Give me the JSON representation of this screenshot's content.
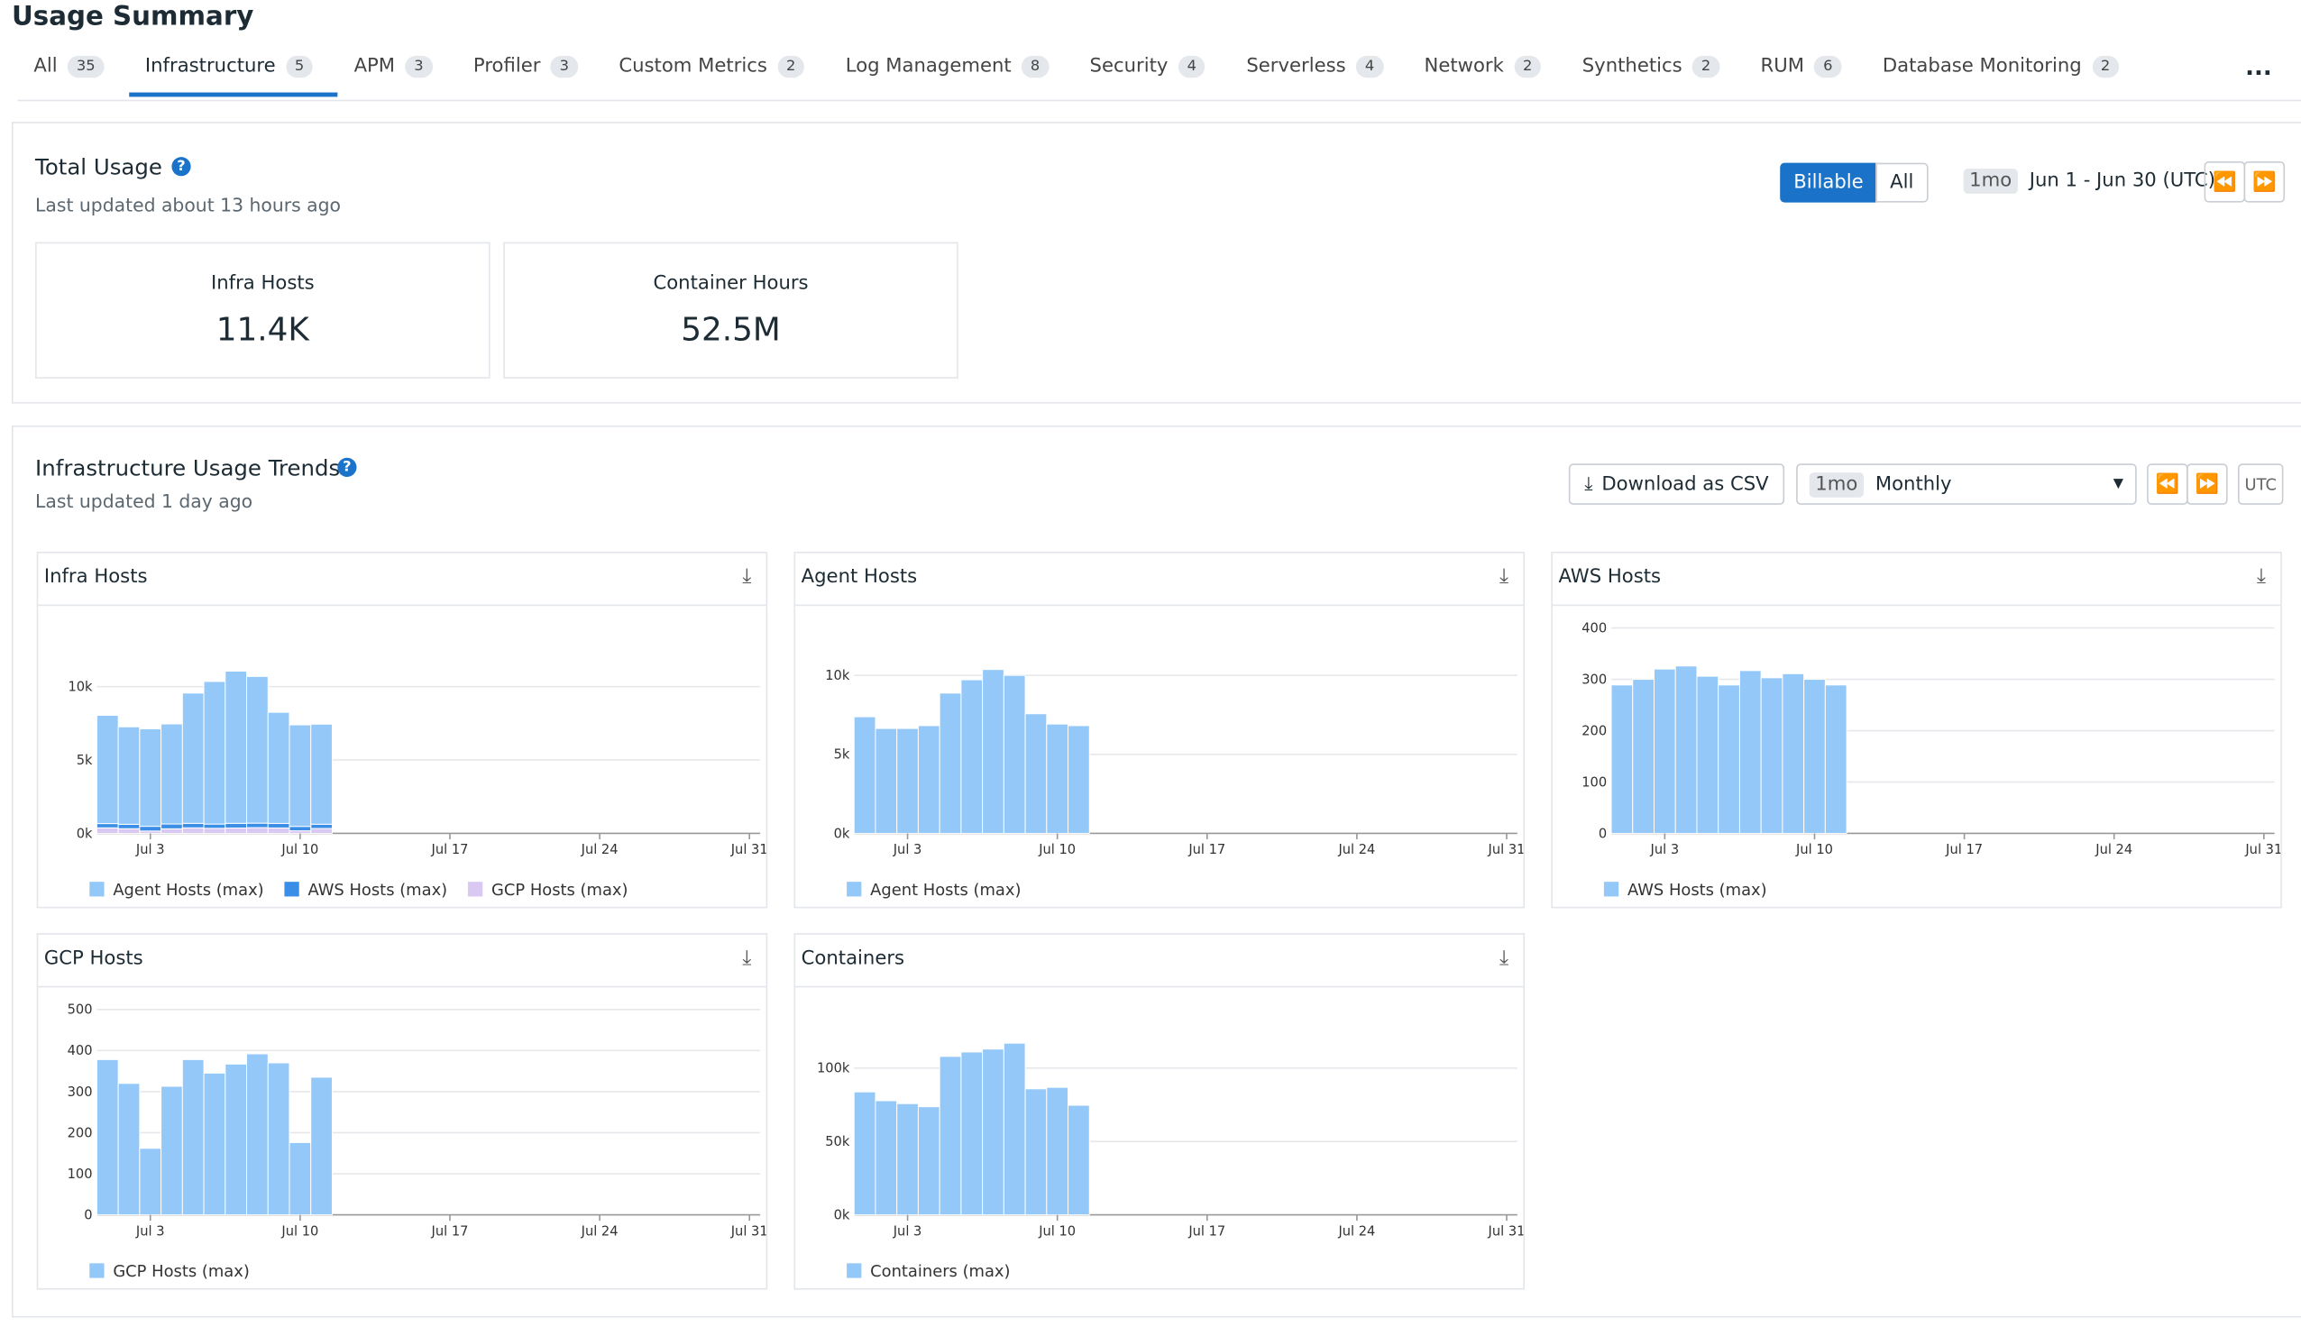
{
  "header": {
    "title": "Usage Summary"
  },
  "tabs": [
    {
      "label": "All",
      "count": 35
    },
    {
      "label": "Infrastructure",
      "count": 5,
      "active": true
    },
    {
      "label": "APM",
      "count": 3
    },
    {
      "label": "Profiler",
      "count": 3
    },
    {
      "label": "Custom Metrics",
      "count": 2
    },
    {
      "label": "Log Management",
      "count": 8
    },
    {
      "label": "Security",
      "count": 4
    },
    {
      "label": "Serverless",
      "count": 4
    },
    {
      "label": "Network",
      "count": 2
    },
    {
      "label": "Synthetics",
      "count": 2
    },
    {
      "label": "RUM",
      "count": 6
    },
    {
      "label": "Database Monitoring",
      "count": 2
    }
  ],
  "total_usage": {
    "title": "Total Usage",
    "updated": "Last updated about 13 hours ago",
    "toggle": [
      "Billable",
      "All"
    ],
    "range_badge": "1mo",
    "range": "Jun 1 - Jun 30 (UTC)",
    "cards": [
      {
        "label": "Infra Hosts",
        "value": "11.4K"
      },
      {
        "label": "Container Hours",
        "value": "52.5M"
      }
    ]
  },
  "trends": {
    "title": "Infrastructure Usage Trends",
    "updated": "Last updated 1 day ago",
    "download": "Download as CSV",
    "period_badge": "1mo",
    "period": "Monthly",
    "tz": "UTC"
  },
  "chart_data": [
    {
      "type": "bar",
      "title": "Infra Hosts",
      "stacked": true,
      "grid": true,
      "legend": "bottom-left",
      "categories": [
        null,
        null,
        "Jul 3",
        null,
        null,
        null,
        null,
        null,
        null,
        "Jul 10",
        null,
        null,
        null,
        null,
        null,
        null,
        "Jul 17",
        null,
        null,
        null,
        null,
        null,
        null,
        "Jul 24",
        null,
        null,
        null,
        null,
        null,
        null,
        "Jul 31"
      ],
      "series": [
        {
          "name": "Agent Hosts (max)",
          "color": "#94c8f8",
          "values": [
            7380,
            6640,
            6640,
            6820,
            8880,
            9720,
            10370,
            10000,
            7570,
            6920,
            6820,
            null,
            null,
            null,
            null,
            null,
            null,
            null,
            null,
            null,
            null,
            null,
            null,
            null,
            null,
            null,
            null,
            null,
            null,
            null,
            null
          ]
        },
        {
          "name": "AWS Hosts (max)",
          "color": "#3a8ee6",
          "values": [
            289,
            300,
            320,
            326,
            306,
            289,
            317,
            303,
            311,
            300,
            289,
            null,
            null,
            null,
            null,
            null,
            null,
            null,
            null,
            null,
            null,
            null,
            null,
            null,
            null,
            null,
            null,
            null,
            null,
            null,
            null
          ]
        },
        {
          "name": "GCP Hosts (max)",
          "color": "#d9c8f2",
          "values": [
            378,
            320,
            162,
            313,
            378,
            345,
            367,
            392,
            370,
            176,
            335,
            null,
            null,
            null,
            null,
            null,
            null,
            null,
            null,
            null,
            null,
            null,
            null,
            null,
            null,
            null,
            null,
            null,
            null,
            null,
            null
          ]
        }
      ],
      "ylim": [
        0,
        14000
      ],
      "yticks": [
        {
          "value": 0,
          "label": "0k"
        },
        {
          "value": 5000,
          "label": "5k"
        },
        {
          "value": 10000,
          "label": "10k"
        }
      ]
    },
    {
      "type": "bar",
      "title": "Agent Hosts",
      "grid": true,
      "legend": "bottom-left",
      "categories": [
        null,
        null,
        "Jul 3",
        null,
        null,
        null,
        null,
        null,
        null,
        "Jul 10",
        null,
        null,
        null,
        null,
        null,
        null,
        "Jul 17",
        null,
        null,
        null,
        null,
        null,
        null,
        "Jul 24",
        null,
        null,
        null,
        null,
        null,
        null,
        "Jul 31"
      ],
      "series": [
        {
          "name": "Agent Hosts (max)",
          "color": "#94c8f8",
          "values": [
            7380,
            6640,
            6640,
            6820,
            8880,
            9720,
            10370,
            10000,
            7570,
            6920,
            6820,
            null,
            null,
            null,
            null,
            null,
            null,
            null,
            null,
            null,
            null,
            null,
            null,
            null,
            null,
            null,
            null,
            null,
            null,
            null,
            null
          ]
        }
      ],
      "ylim": [
        0,
        13000
      ],
      "yticks": [
        {
          "value": 0,
          "label": "0k"
        },
        {
          "value": 5000,
          "label": "5k"
        },
        {
          "value": 10000,
          "label": "10k"
        }
      ]
    },
    {
      "type": "bar",
      "title": "AWS Hosts",
      "grid": true,
      "legend": "bottom-left",
      "categories": [
        null,
        null,
        "Jul 3",
        null,
        null,
        null,
        null,
        null,
        null,
        "Jul 10",
        null,
        null,
        null,
        null,
        null,
        null,
        "Jul 17",
        null,
        null,
        null,
        null,
        null,
        null,
        "Jul 24",
        null,
        null,
        null,
        null,
        null,
        null,
        "Jul 31"
      ],
      "series": [
        {
          "name": "AWS Hosts (max)",
          "color": "#94c8f8",
          "values": [
            289,
            300,
            320,
            326,
            306,
            289,
            317,
            303,
            311,
            300,
            289,
            null,
            null,
            null,
            null,
            null,
            null,
            null,
            null,
            null,
            null,
            null,
            null,
            null,
            null,
            null,
            null,
            null,
            null,
            null,
            null
          ]
        }
      ],
      "ylim": [
        0,
        400
      ],
      "yticks": [
        0,
        100,
        200,
        300,
        400
      ]
    },
    {
      "type": "bar",
      "title": "GCP Hosts",
      "grid": true,
      "legend": "bottom-left",
      "categories": [
        null,
        null,
        "Jul 3",
        null,
        null,
        null,
        null,
        null,
        null,
        "Jul 10",
        null,
        null,
        null,
        null,
        null,
        null,
        "Jul 17",
        null,
        null,
        null,
        null,
        null,
        null,
        "Jul 24",
        null,
        null,
        null,
        null,
        null,
        null,
        "Jul 31"
      ],
      "series": [
        {
          "name": "GCP Hosts (max)",
          "color": "#94c8f8",
          "values": [
            378,
            320,
            162,
            313,
            378,
            345,
            367,
            392,
            370,
            176,
            335,
            null,
            null,
            null,
            null,
            null,
            null,
            null,
            null,
            null,
            null,
            null,
            null,
            null,
            null,
            null,
            null,
            null,
            null,
            null,
            null
          ]
        }
      ],
      "ylim": [
        0,
        500
      ],
      "yticks": [
        0,
        100,
        200,
        300,
        400,
        500
      ]
    },
    {
      "type": "bar",
      "title": "Containers",
      "grid": true,
      "legend": "bottom-left",
      "categories": [
        null,
        null,
        "Jul 3",
        null,
        null,
        null,
        null,
        null,
        null,
        "Jul 10",
        null,
        null,
        null,
        null,
        null,
        null,
        "Jul 17",
        null,
        null,
        null,
        null,
        null,
        null,
        "Jul 24",
        null,
        null,
        null,
        null,
        null,
        null,
        "Jul 31"
      ],
      "series": [
        {
          "name": "Containers (max)",
          "color": "#94c8f8",
          "values": [
            83800,
            77800,
            75800,
            73700,
            108000,
            111000,
            113000,
            117000,
            85900,
            86900,
            74700,
            null,
            null,
            null,
            null,
            null,
            null,
            null,
            null,
            null,
            null,
            null,
            null,
            null,
            null,
            null,
            null,
            null,
            null,
            null,
            null
          ]
        }
      ],
      "ylim": [
        0,
        140000
      ],
      "yticks": [
        {
          "value": 0,
          "label": "0k"
        },
        {
          "value": 50000,
          "label": "50k"
        },
        {
          "value": 100000,
          "label": "100k"
        }
      ]
    }
  ]
}
